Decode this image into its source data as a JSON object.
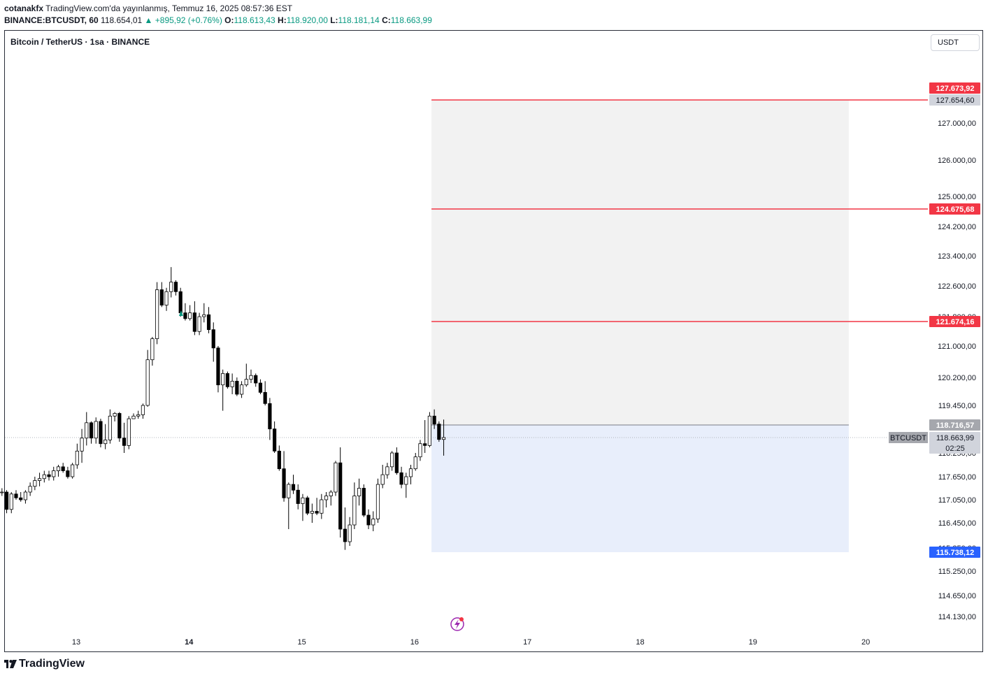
{
  "header": {
    "author": "cotanakfx",
    "published": "TradingView.com'da yayınlanmış, Temmuz 16, 2025 08:57:36 EST",
    "symbol_line": "BINANCE:BTCUSDT, 60",
    "last": "118.654,01",
    "change": "▲ +895,92 (+0.76%)",
    "o_label": "O:",
    "o": "118.613,43",
    "h_label": "H:",
    "h": "118.920,00",
    "l_label": "L:",
    "l": "118.181,14",
    "c_label": "C:",
    "c": "118.663,99"
  },
  "chart_title": "Bitcoin / TetherUS · 1sa · BINANCE",
  "currency_button": "USDT",
  "footer_logo": "TradingView",
  "colors": {
    "up": "#ffffff",
    "down": "#000000",
    "wick": "#000000",
    "red_line": "#f23645",
    "target_zone": "#f2f2f2",
    "stop_zone": "#e8eefb",
    "blue_label": "#2962ff",
    "grey_label": "#a5a7ad",
    "mark_green": "#089981",
    "lightning": "#9c27b0"
  },
  "chart_data": {
    "type": "candlestick",
    "timeframe": "1 hour",
    "y_ticks": [
      "127.000,00",
      "126.000,00",
      "125.000,00",
      "124.200,00",
      "123.400,00",
      "122.600,00",
      "121.800,00",
      "121.000,00",
      "120.200,00",
      "119.450,00",
      "118.250,00",
      "117.650,00",
      "117.050,00",
      "116.450,00",
      "115.850,00",
      "115.250,00",
      "114.650,00",
      "114.130,00"
    ],
    "y_tick_values": [
      127000,
      126000,
      125000,
      124200,
      123400,
      122600,
      121800,
      121000,
      120200,
      119450,
      118250,
      117650,
      117050,
      116450,
      115850,
      115250,
      114650,
      114130
    ],
    "x_ticks": [
      "13",
      "14",
      "15",
      "16",
      "17",
      "18",
      "19",
      "20"
    ],
    "x_tick_bold": [
      "14"
    ],
    "price_labels": [
      {
        "text": "127.673,92",
        "value": 127673.92,
        "style": "red"
      },
      {
        "text": "127.654,60",
        "value": 127654.6,
        "style": "light"
      },
      {
        "text": "124.675,68",
        "value": 124675.68,
        "style": "red"
      },
      {
        "text": "121.674,16",
        "value": 121674.16,
        "style": "red"
      },
      {
        "text": "118.716,57",
        "value": 118716.57,
        "style": "grey"
      },
      {
        "text": "118.663,99",
        "value": 118663.99,
        "style": "light"
      },
      {
        "text": "02:25",
        "style": "timer"
      },
      {
        "text": "115.738,12",
        "value": 115738.12,
        "style": "blue"
      }
    ],
    "symbol_tag": "BTCUSDT",
    "horizontal_lines": [
      127654.6,
      124675.68,
      121674.16
    ],
    "position": {
      "entry": 118716.57,
      "target": 127654.6,
      "stop": 115738.12,
      "start_day": 16.15,
      "end_day": 19.85
    },
    "candles": [
      {
        "o": 117250,
        "h": 117450,
        "l": 117000,
        "c": 117300
      },
      {
        "o": 117300,
        "h": 117400,
        "l": 116950,
        "c": 117100
      },
      {
        "o": 117100,
        "h": 117250,
        "l": 116650,
        "c": 116750
      },
      {
        "o": 116750,
        "h": 117200,
        "l": 116600,
        "c": 117150
      },
      {
        "o": 117150,
        "h": 117250,
        "l": 116850,
        "c": 116900
      },
      {
        "o": 116900,
        "h": 117250,
        "l": 116800,
        "c": 117200
      },
      {
        "o": 117200,
        "h": 117350,
        "l": 117100,
        "c": 117250
      },
      {
        "o": 117250,
        "h": 117350,
        "l": 117150,
        "c": 117250
      },
      {
        "o": 117250,
        "h": 117300,
        "l": 116700,
        "c": 116800
      },
      {
        "o": 116800,
        "h": 117250,
        "l": 116700,
        "c": 117200
      },
      {
        "o": 117200,
        "h": 117300,
        "l": 117050,
        "c": 117100
      },
      {
        "o": 117100,
        "h": 117250,
        "l": 117000,
        "c": 117050
      },
      {
        "o": 117050,
        "h": 117300,
        "l": 116950,
        "c": 117250
      },
      {
        "o": 117250,
        "h": 117500,
        "l": 117150,
        "c": 117400
      },
      {
        "o": 117400,
        "h": 117650,
        "l": 117300,
        "c": 117550
      },
      {
        "o": 117550,
        "h": 117750,
        "l": 117400,
        "c": 117600
      },
      {
        "o": 117600,
        "h": 117800,
        "l": 117500,
        "c": 117700
      },
      {
        "o": 117700,
        "h": 117800,
        "l": 117550,
        "c": 117650
      },
      {
        "o": 117650,
        "h": 117900,
        "l": 117550,
        "c": 117800
      },
      {
        "o": 117800,
        "h": 117950,
        "l": 117650,
        "c": 117900
      },
      {
        "o": 117900,
        "h": 118000,
        "l": 117750,
        "c": 117800
      },
      {
        "o": 117800,
        "h": 117900,
        "l": 117600,
        "c": 117650
      },
      {
        "o": 117650,
        "h": 118000,
        "l": 117600,
        "c": 117950
      },
      {
        "o": 117950,
        "h": 118500,
        "l": 117850,
        "c": 118300
      },
      {
        "o": 118300,
        "h": 118700,
        "l": 118000,
        "c": 118650
      },
      {
        "o": 118650,
        "h": 119200,
        "l": 118450,
        "c": 118800
      },
      {
        "o": 118800,
        "h": 118850,
        "l": 118500,
        "c": 118650
      },
      {
        "o": 118650,
        "h": 119000,
        "l": 118500,
        "c": 118850
      },
      {
        "o": 118850,
        "h": 118950,
        "l": 118400,
        "c": 118500
      },
      {
        "o": 118500,
        "h": 118750,
        "l": 118350,
        "c": 118600
      },
      {
        "o": 118600,
        "h": 119300,
        "l": 118500,
        "c": 119050
      },
      {
        "o": 119050,
        "h": 119200,
        "l": 118850,
        "c": 119150
      },
      {
        "o": 119150,
        "h": 119200,
        "l": 118550,
        "c": 118650
      },
      {
        "o": 118650,
        "h": 118800,
        "l": 118250,
        "c": 118450
      },
      {
        "o": 118450,
        "h": 119050,
        "l": 118350,
        "c": 118950
      },
      {
        "o": 118950,
        "h": 119150,
        "l": 118950,
        "c": 119050
      },
      {
        "o": 119050,
        "h": 119250,
        "l": 118950,
        "c": 119100
      },
      {
        "o": 119100,
        "h": 119500,
        "l": 118950,
        "c": 119450
      },
      {
        "o": 119450,
        "h": 120900,
        "l": 119400,
        "c": 120650
      },
      {
        "o": 120650,
        "h": 121250,
        "l": 120500,
        "c": 121200
      },
      {
        "o": 121200,
        "h": 122700,
        "l": 121050,
        "c": 122500
      },
      {
        "o": 122500,
        "h": 122700,
        "l": 122050,
        "c": 122100
      },
      {
        "o": 122100,
        "h": 122550,
        "l": 121950,
        "c": 122450
      },
      {
        "o": 122450,
        "h": 123100,
        "l": 122300,
        "c": 122700
      },
      {
        "o": 122700,
        "h": 122750,
        "l": 122350,
        "c": 122450
      },
      {
        "o": 122450,
        "h": 122550,
        "l": 121800,
        "c": 121900
      },
      {
        "o": 121900,
        "h": 122150,
        "l": 121700,
        "c": 121750
      },
      {
        "o": 121750,
        "h": 122100,
        "l": 121700,
        "c": 121900
      },
      {
        "o": 121900,
        "h": 122200,
        "l": 121300,
        "c": 121400
      },
      {
        "o": 121400,
        "h": 121900,
        "l": 121300,
        "c": 121800
      },
      {
        "o": 121800,
        "h": 122150,
        "l": 121650,
        "c": 121850
      },
      {
        "o": 121850,
        "h": 122050,
        "l": 121350,
        "c": 121450
      },
      {
        "o": 121450,
        "h": 121650,
        "l": 120600,
        "c": 120950
      },
      {
        "o": 120950,
        "h": 121000,
        "l": 119800,
        "c": 120000
      },
      {
        "o": 120000,
        "h": 120400,
        "l": 119250,
        "c": 120300
      },
      {
        "o": 120300,
        "h": 120350,
        "l": 119900,
        "c": 119950
      },
      {
        "o": 119950,
        "h": 120300,
        "l": 119750,
        "c": 120100
      },
      {
        "o": 120100,
        "h": 120200,
        "l": 119700,
        "c": 119750
      },
      {
        "o": 119750,
        "h": 120100,
        "l": 119650,
        "c": 120000
      },
      {
        "o": 120000,
        "h": 120550,
        "l": 119950,
        "c": 120150
      },
      {
        "o": 120150,
        "h": 120400,
        "l": 120050,
        "c": 120250
      },
      {
        "o": 120250,
        "h": 120300,
        "l": 119950,
        "c": 120050
      },
      {
        "o": 120050,
        "h": 120150,
        "l": 119750,
        "c": 119800
      },
      {
        "o": 119800,
        "h": 120100,
        "l": 119450,
        "c": 119500
      },
      {
        "o": 119500,
        "h": 119650,
        "l": 118600,
        "c": 118700
      },
      {
        "o": 118700,
        "h": 118850,
        "l": 118250,
        "c": 118300
      },
      {
        "o": 118300,
        "h": 118450,
        "l": 117800,
        "c": 117850
      },
      {
        "o": 117850,
        "h": 118300,
        "l": 117000,
        "c": 117100
      },
      {
        "o": 117100,
        "h": 117500,
        "l": 116300,
        "c": 117450
      },
      {
        "o": 117450,
        "h": 117700,
        "l": 117200,
        "c": 117300
      },
      {
        "o": 117300,
        "h": 117450,
        "l": 116800,
        "c": 116950
      },
      {
        "o": 116950,
        "h": 117200,
        "l": 116500,
        "c": 117100
      },
      {
        "o": 117100,
        "h": 117150,
        "l": 116650,
        "c": 116700
      },
      {
        "o": 116700,
        "h": 116950,
        "l": 116450,
        "c": 116750
      },
      {
        "o": 116750,
        "h": 117100,
        "l": 116650,
        "c": 116700
      },
      {
        "o": 116700,
        "h": 117200,
        "l": 116550,
        "c": 117050
      },
      {
        "o": 117050,
        "h": 117250,
        "l": 116850,
        "c": 117150
      },
      {
        "o": 117150,
        "h": 117300,
        "l": 116900,
        "c": 117250
      },
      {
        "o": 117250,
        "h": 118050,
        "l": 117150,
        "c": 118000
      },
      {
        "o": 118000,
        "h": 118400,
        "l": 116100,
        "c": 116300
      },
      {
        "o": 116300,
        "h": 116850,
        "l": 115800,
        "c": 116000
      },
      {
        "o": 116000,
        "h": 116600,
        "l": 115900,
        "c": 116400
      },
      {
        "o": 116400,
        "h": 117500,
        "l": 116300,
        "c": 117150
      },
      {
        "o": 117150,
        "h": 117600,
        "l": 116900,
        "c": 117350
      },
      {
        "o": 117350,
        "h": 117450,
        "l": 116600,
        "c": 116650
      },
      {
        "o": 116650,
        "h": 116800,
        "l": 116300,
        "c": 116400
      },
      {
        "o": 116400,
        "h": 116750,
        "l": 116250,
        "c": 116550
      },
      {
        "o": 116550,
        "h": 117600,
        "l": 116450,
        "c": 117450
      },
      {
        "o": 117450,
        "h": 117950,
        "l": 117350,
        "c": 117700
      },
      {
        "o": 117700,
        "h": 118000,
        "l": 117600,
        "c": 117900
      },
      {
        "o": 117900,
        "h": 118300,
        "l": 117800,
        "c": 118250
      },
      {
        "o": 118250,
        "h": 118400,
        "l": 117700,
        "c": 117750
      },
      {
        "o": 117750,
        "h": 117900,
        "l": 117350,
        "c": 117450
      },
      {
        "o": 117450,
        "h": 117750,
        "l": 117100,
        "c": 117650
      },
      {
        "o": 117650,
        "h": 117950,
        "l": 117450,
        "c": 117850
      },
      {
        "o": 117850,
        "h": 118250,
        "l": 117800,
        "c": 118150
      },
      {
        "o": 118150,
        "h": 118600,
        "l": 118050,
        "c": 118500
      },
      {
        "o": 118500,
        "h": 118900,
        "l": 118250,
        "c": 118450
      },
      {
        "o": 118450,
        "h": 119200,
        "l": 118400,
        "c": 119050
      },
      {
        "o": 119050,
        "h": 119300,
        "l": 118700,
        "c": 118750
      },
      {
        "o": 118750,
        "h": 118850,
        "l": 118550,
        "c": 118613
      },
      {
        "o": 118613,
        "h": 118920,
        "l": 118181,
        "c": 118664
      }
    ],
    "start_day": 12.05,
    "bar_hours": 1
  }
}
